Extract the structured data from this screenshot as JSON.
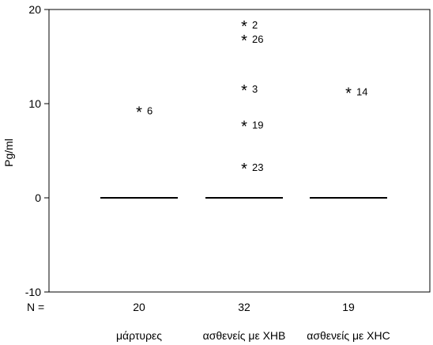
{
  "chart_data": {
    "type": "scatter",
    "ylabel": "Pg/ml",
    "ylim": [
      -10,
      20
    ],
    "yticks": [
      -10,
      0,
      10,
      20
    ],
    "n_label": "N =",
    "grid": false,
    "categories": [
      {
        "name": "μάρτυρες",
        "n": "20",
        "median": 0
      },
      {
        "name": "ασθενείς με ΧΗΒ",
        "n": "32",
        "median": 0
      },
      {
        "name": "ασθενείς με ΧΗC",
        "n": "19",
        "median": 0
      }
    ],
    "outliers": [
      {
        "category": 0,
        "value": 9.2,
        "label": "6"
      },
      {
        "category": 1,
        "value": 18.3,
        "label": "2"
      },
      {
        "category": 1,
        "value": 16.8,
        "label": "26"
      },
      {
        "category": 1,
        "value": 11.5,
        "label": "3"
      },
      {
        "category": 1,
        "value": 7.7,
        "label": "19"
      },
      {
        "category": 1,
        "value": 3.2,
        "label": "23"
      },
      {
        "category": 2,
        "value": 11.2,
        "label": "14"
      }
    ],
    "marker_symbol": "*",
    "colors": {
      "line": "#000000",
      "text": "#000000",
      "background": "#ffffff"
    }
  }
}
